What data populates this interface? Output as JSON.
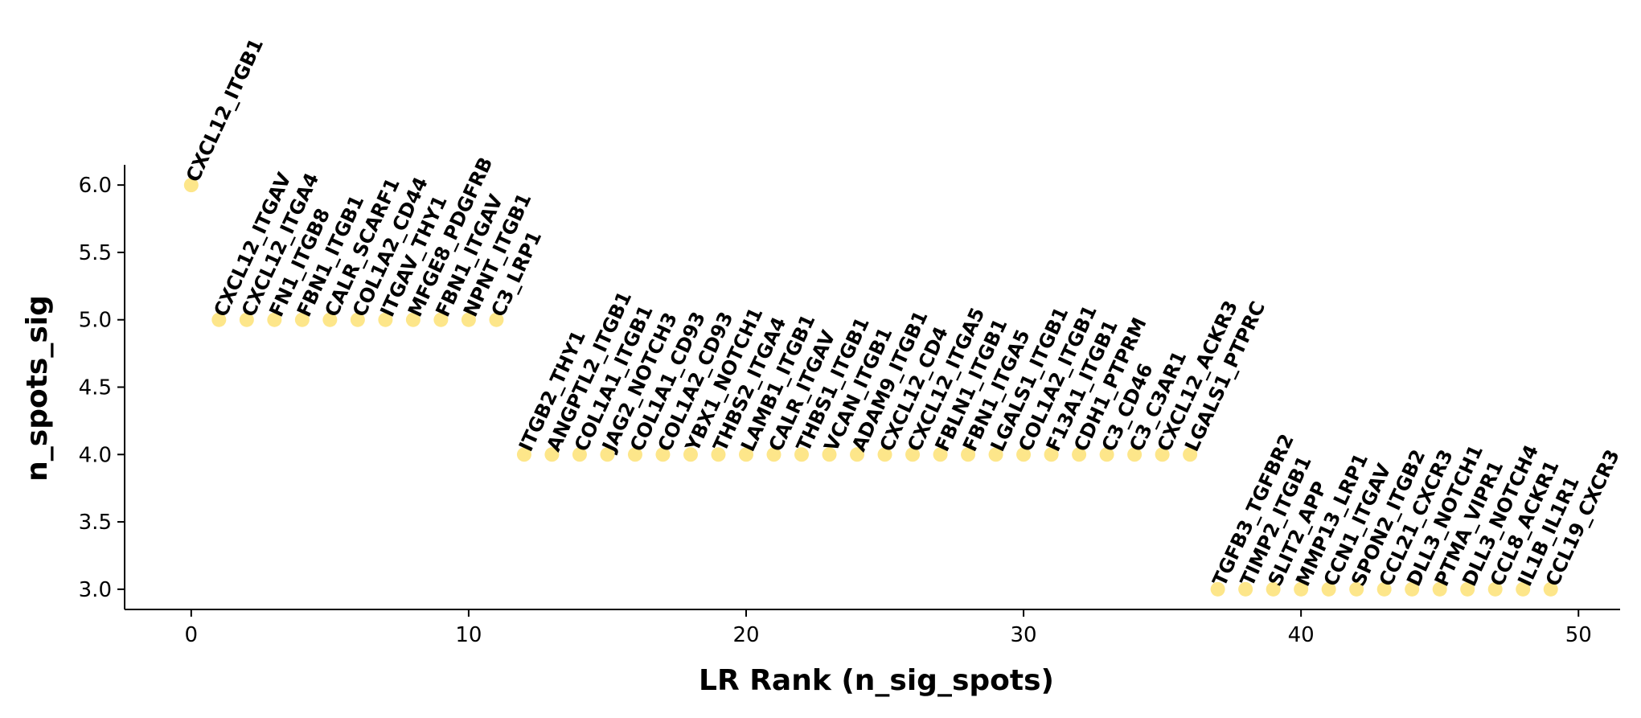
{
  "chart_data": {
    "type": "scatter",
    "title": "",
    "xlabel": "LR Rank (n_sig_spots)",
    "ylabel": "n_spots_sig",
    "xlim": [
      -2.4,
      51.5
    ],
    "ylim": [
      2.85,
      6.15
    ],
    "xticks": [
      0,
      10,
      20,
      30,
      40,
      50
    ],
    "yticks": [
      3.0,
      3.5,
      4.0,
      4.5,
      5.0,
      5.5,
      6.0
    ],
    "grid": false,
    "point_color": "#fde68a",
    "points": [
      {
        "x": 0,
        "y": 6,
        "label": "CXCL12_ITGB1"
      },
      {
        "x": 1,
        "y": 5,
        "label": "CXCL12_ITGAV"
      },
      {
        "x": 2,
        "y": 5,
        "label": "CXCL12_ITGA4"
      },
      {
        "x": 3,
        "y": 5,
        "label": "FN1_ITGB8"
      },
      {
        "x": 4,
        "y": 5,
        "label": "FBN1_ITGB1"
      },
      {
        "x": 5,
        "y": 5,
        "label": "CALR_SCARF1"
      },
      {
        "x": 6,
        "y": 5,
        "label": "COL1A2_CD44"
      },
      {
        "x": 7,
        "y": 5,
        "label": "ITGAV_THY1"
      },
      {
        "x": 8,
        "y": 5,
        "label": "MFGE8_PDGFRB"
      },
      {
        "x": 9,
        "y": 5,
        "label": "FBN1_ITGAV"
      },
      {
        "x": 10,
        "y": 5,
        "label": "NPNT_ITGB1"
      },
      {
        "x": 11,
        "y": 5,
        "label": "C3_LRP1"
      },
      {
        "x": 12,
        "y": 4,
        "label": "ITGB2_THY1"
      },
      {
        "x": 13,
        "y": 4,
        "label": "ANGPTL2_ITGB1"
      },
      {
        "x": 14,
        "y": 4,
        "label": "COL1A1_ITGB1"
      },
      {
        "x": 15,
        "y": 4,
        "label": "JAG2_NOTCH3"
      },
      {
        "x": 16,
        "y": 4,
        "label": "COL1A1_CD93"
      },
      {
        "x": 17,
        "y": 4,
        "label": "COL1A2_CD93"
      },
      {
        "x": 18,
        "y": 4,
        "label": "YBX1_NOTCH1"
      },
      {
        "x": 19,
        "y": 4,
        "label": "THBS2_ITGA4"
      },
      {
        "x": 20,
        "y": 4,
        "label": "LAMB1_ITGB1"
      },
      {
        "x": 21,
        "y": 4,
        "label": "CALR_ITGAV"
      },
      {
        "x": 22,
        "y": 4,
        "label": "THBS1_ITGB1"
      },
      {
        "x": 23,
        "y": 4,
        "label": "VCAN_ITGB1"
      },
      {
        "x": 24,
        "y": 4,
        "label": "ADAM9_ITGB1"
      },
      {
        "x": 25,
        "y": 4,
        "label": "CXCL12_CD4"
      },
      {
        "x": 26,
        "y": 4,
        "label": "CXCL12_ITGA5"
      },
      {
        "x": 27,
        "y": 4,
        "label": "FBLN1_ITGB1"
      },
      {
        "x": 28,
        "y": 4,
        "label": "FBN1_ITGA5"
      },
      {
        "x": 29,
        "y": 4,
        "label": "LGALS1_ITGB1"
      },
      {
        "x": 30,
        "y": 4,
        "label": "COL1A2_ITGB1"
      },
      {
        "x": 31,
        "y": 4,
        "label": "F13A1_ITGB1"
      },
      {
        "x": 32,
        "y": 4,
        "label": "CDH1_PTPRM"
      },
      {
        "x": 33,
        "y": 4,
        "label": "C3_CD46"
      },
      {
        "x": 34,
        "y": 4,
        "label": "C3_C3AR1"
      },
      {
        "x": 35,
        "y": 4,
        "label": "CXCL12_ACKR3"
      },
      {
        "x": 36,
        "y": 4,
        "label": "LGALS1_PTPRC"
      },
      {
        "x": 37,
        "y": 3,
        "label": "TGFB3_TGFBR2"
      },
      {
        "x": 38,
        "y": 3,
        "label": "TIMP2_ITGB1"
      },
      {
        "x": 39,
        "y": 3,
        "label": "SLIT2_APP"
      },
      {
        "x": 40,
        "y": 3,
        "label": "MMP13_LRP1"
      },
      {
        "x": 41,
        "y": 3,
        "label": "CCN1_ITGAV"
      },
      {
        "x": 42,
        "y": 3,
        "label": "SPON2_ITGB2"
      },
      {
        "x": 43,
        "y": 3,
        "label": "CCL21_CXCR3"
      },
      {
        "x": 44,
        "y": 3,
        "label": "DLL3_NOTCH1"
      },
      {
        "x": 45,
        "y": 3,
        "label": "PTMA_VIPR1"
      },
      {
        "x": 46,
        "y": 3,
        "label": "DLL3_NOTCH4"
      },
      {
        "x": 47,
        "y": 3,
        "label": "CCL8_ACKR1"
      },
      {
        "x": 48,
        "y": 3,
        "label": "IL1B_IL1R1"
      },
      {
        "x": 49,
        "y": 3,
        "label": "CCL19_CXCR3"
      }
    ]
  }
}
